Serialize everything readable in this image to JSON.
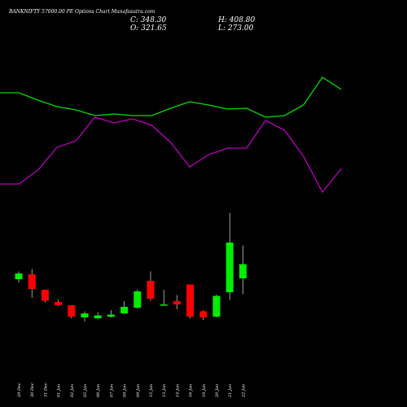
{
  "header": {
    "title": "BANKNIFTY 57000.00  PE Options Chart Munafasutra.com",
    "close_label": "C: 348.30",
    "open_label": "O: 321.65",
    "high_label": "H: 408.80",
    "low_label": "L: 273.00"
  },
  "colors": {
    "background": "#000000",
    "up": "#00ee00",
    "down": "#ff0000",
    "upper_line": "#00dd00",
    "lower_line": "#bb00bb",
    "wick": "#ffffff"
  },
  "chart_data": {
    "type": "candlestick",
    "price_range": [
      0,
      440
    ],
    "candles": [
      {
        "label": "29 Dec",
        "open": 84,
        "high": 103,
        "low": 76,
        "close": 98
      },
      {
        "label": "30 Dec",
        "open": 96,
        "high": 109,
        "low": 38,
        "close": 60
      },
      {
        "label": "31 Dec",
        "open": 58,
        "high": 58,
        "low": 27,
        "close": 31
      },
      {
        "label": "01 Jan",
        "open": 28,
        "high": 34,
        "low": 18,
        "close": 20
      },
      {
        "label": "02 Jan",
        "open": 20,
        "high": 20,
        "low": -12,
        "close": -8
      },
      {
        "label": "05 Jan",
        "open": -10,
        "high": 5,
        "low": -20,
        "close": 0
      },
      {
        "label": "06 Jan",
        "open": -12,
        "high": 3,
        "low": -15,
        "close": -5
      },
      {
        "label": "07 Jan",
        "open": -8,
        "high": 8,
        "low": -10,
        "close": -3
      },
      {
        "label": "09 Jan",
        "open": 0,
        "high": 30,
        "low": -2,
        "close": 16
      },
      {
        "label": "09 Jan",
        "open": 14,
        "high": 59,
        "low": 12,
        "close": 54
      },
      {
        "label": "12 Jan",
        "open": 80,
        "high": 103,
        "low": 31,
        "close": 36
      },
      {
        "label": "13 Jan",
        "open": 22,
        "high": 58,
        "low": 20,
        "close": 22
      },
      {
        "label": "14 Jan",
        "open": 30,
        "high": 45,
        "low": 10,
        "close": 22
      },
      {
        "label": "16 Jan",
        "open": 71,
        "high": 71,
        "low": -12,
        "close": -8
      },
      {
        "label": "19 Jan",
        "open": 5,
        "high": 8,
        "low": -16,
        "close": -10
      },
      {
        "label": "20 Jan",
        "open": -8,
        "high": 46,
        "low": -10,
        "close": 43
      },
      {
        "label": "21 Jan",
        "open": 52,
        "high": 247,
        "low": 33,
        "close": 174
      },
      {
        "label": "22 Jan",
        "open": 86,
        "high": 167,
        "low": 47,
        "close": 121
      }
    ],
    "upper_band": [
      114,
      114,
      123,
      131,
      135,
      142,
      140,
      142,
      142,
      133,
      125,
      129,
      134,
      133,
      144,
      142,
      129,
      95,
      110
    ],
    "lower_band": [
      226,
      226,
      209,
      181,
      173,
      144,
      151,
      146,
      154,
      175,
      205,
      190,
      182,
      182,
      148,
      160,
      192,
      236,
      207
    ]
  }
}
